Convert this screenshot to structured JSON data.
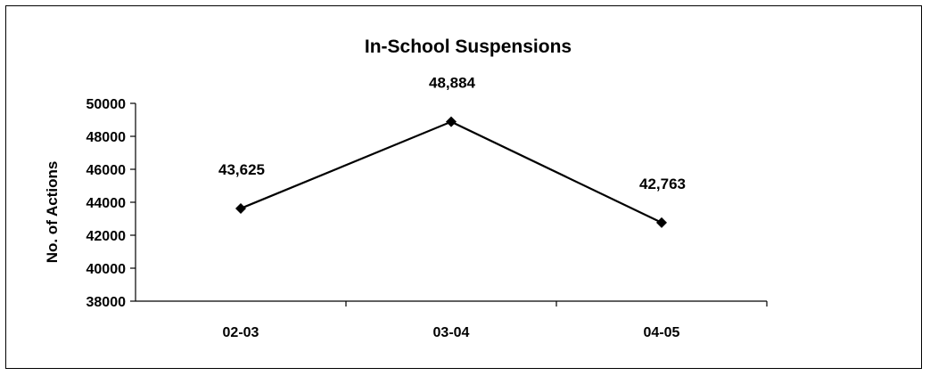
{
  "chart_data": {
    "type": "line",
    "title": "In-School Suspensions",
    "xlabel": "",
    "ylabel": "No. of Actions",
    "categories": [
      "02-03",
      "03-04",
      "04-05"
    ],
    "series": [
      {
        "values": [
          43625,
          48884,
          42763
        ],
        "data_labels": [
          "43,625",
          "48,884",
          "42,763"
        ],
        "color": "#000000",
        "marker": "diamond"
      }
    ],
    "ylim": [
      38000,
      50000
    ],
    "yticks": [
      38000,
      40000,
      42000,
      44000,
      46000,
      48000,
      50000
    ],
    "ytick_labels": [
      "38000",
      "40000",
      "42000",
      "44000",
      "46000",
      "48000",
      "50000"
    ],
    "grid": false,
    "legend": "none"
  }
}
